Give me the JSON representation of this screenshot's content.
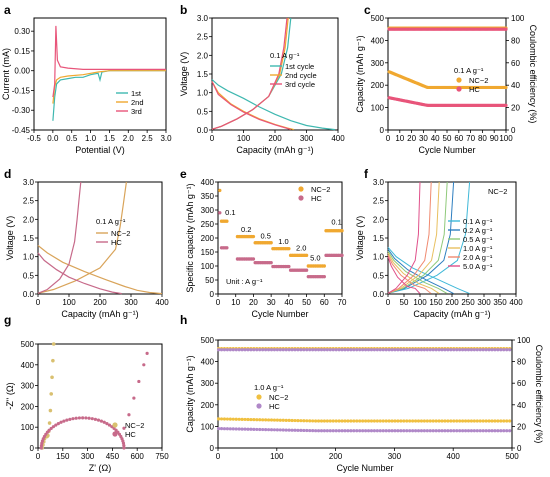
{
  "chart_data": [
    {
      "panel": "a",
      "type": "line",
      "xlabel": "Potential (V)",
      "ylabel": "Current (mA)",
      "xlim": [
        -0.5,
        3.0
      ],
      "ylim": [
        -0.45,
        0.4
      ],
      "xticks": [
        "-0.5",
        "0.0",
        "0.5",
        "1.0",
        "1.5",
        "2.0",
        "2.5",
        "3.0"
      ],
      "yticks": [
        "-0.45",
        "-0.30",
        "-0.15",
        "0.00",
        "0.15",
        "0.30"
      ],
      "legend_position": "bottom-right",
      "series": [
        {
          "name": "1st",
          "color": "#3fb8b0",
          "x": [
            0.0,
            0.05,
            0.1,
            0.2,
            0.4,
            0.6,
            0.8,
            1.0,
            1.2,
            1.25,
            1.3,
            1.5,
            2.0,
            2.5,
            3.0
          ],
          "y": [
            -0.38,
            -0.2,
            -0.1,
            -0.07,
            -0.06,
            -0.05,
            -0.05,
            -0.03,
            -0.02,
            -0.07,
            -0.01,
            0.0,
            0.0,
            0.0,
            0.0
          ]
        },
        {
          "name": "2nd",
          "color": "#f0a830",
          "x": [
            0.0,
            0.05,
            0.1,
            0.2,
            0.4,
            0.8,
            1.2,
            1.5,
            2.0,
            2.5,
            3.0
          ],
          "y": [
            -0.25,
            -0.12,
            -0.07,
            -0.05,
            -0.04,
            -0.03,
            -0.01,
            0.0,
            0.0,
            0.0,
            0.0
          ]
        },
        {
          "name": "3rd",
          "color": "#e8557a",
          "x": [
            0.0,
            0.05,
            0.08,
            0.12,
            0.2,
            0.4,
            0.8,
            1.5,
            2.0,
            2.5,
            3.0
          ],
          "y": [
            -0.2,
            -0.1,
            0.34,
            0.08,
            0.03,
            0.02,
            0.01,
            0.01,
            0.01,
            0.01,
            0.01
          ]
        }
      ],
      "legend": [
        "1st",
        "2nd",
        "3rd"
      ]
    },
    {
      "panel": "b",
      "type": "line",
      "xlabel": "Capacity (mAh g⁻¹)",
      "ylabel": "Voltage (V)",
      "xlim": [
        0,
        400
      ],
      "ylim": [
        0,
        3.0
      ],
      "xticks": [
        "0",
        "100",
        "200",
        "300",
        "400"
      ],
      "yticks": [
        "0.0",
        "0.5",
        "1.0",
        "1.5",
        "2.0",
        "2.5",
        "3.0"
      ],
      "annotation": "0.1 A g⁻¹",
      "legend": [
        "1st cycle",
        "2nd cycle",
        "3rd cycle"
      ],
      "series": [
        {
          "name": "1st cycle",
          "color": "#3fb8b0",
          "discharge": {
            "x": [
              0,
              20,
              50,
              100,
              150,
              200,
              250,
              300,
              350,
              390
            ],
            "y": [
              1.35,
              1.2,
              1.05,
              0.85,
              0.62,
              0.42,
              0.25,
              0.12,
              0.05,
              0.01
            ]
          },
          "charge": {
            "x": [
              0,
              30,
              80,
              130,
              180,
              220,
              240,
              250
            ],
            "y": [
              0.02,
              0.1,
              0.3,
              0.55,
              0.9,
              1.5,
              2.2,
              3.0
            ]
          }
        },
        {
          "name": "2nd cycle",
          "color": "#f0a830",
          "discharge": {
            "x": [
              0,
              20,
              60,
              100,
              150,
              200,
              240,
              260
            ],
            "y": [
              1.3,
              1.0,
              0.7,
              0.5,
              0.3,
              0.15,
              0.05,
              0.01
            ]
          },
          "charge": {
            "x": [
              0,
              30,
              80,
              130,
              180,
              215,
              232,
              242
            ],
            "y": [
              0.02,
              0.1,
              0.3,
              0.55,
              0.9,
              1.5,
              2.2,
              3.0
            ]
          }
        },
        {
          "name": "3rd cycle",
          "color": "#e8557a",
          "discharge": {
            "x": [
              0,
              20,
              60,
              100,
              150,
              200,
              235,
              250
            ],
            "y": [
              1.3,
              0.95,
              0.68,
              0.48,
              0.28,
              0.14,
              0.05,
              0.01
            ]
          },
          "charge": {
            "x": [
              0,
              30,
              80,
              130,
              180,
              212,
              228,
              238
            ],
            "y": [
              0.02,
              0.1,
              0.3,
              0.55,
              0.9,
              1.5,
              2.2,
              3.0
            ]
          }
        }
      ]
    },
    {
      "panel": "c",
      "type": "scatter",
      "xlabel": "Cycle Number",
      "ylabel": "Capacity (mAh g⁻¹)",
      "ylabel2": "Coulombic efficiency (%)",
      "xlim": [
        0,
        100
      ],
      "ylim": [
        0,
        500
      ],
      "y2lim": [
        0,
        100
      ],
      "xticks": [
        "0",
        "10",
        "20",
        "30",
        "40",
        "50",
        "60",
        "70",
        "80",
        "90",
        "100"
      ],
      "yticks": [
        "0",
        "100",
        "200",
        "300",
        "400",
        "500"
      ],
      "y2ticks": [
        "0",
        "20",
        "40",
        "60",
        "80",
        "100"
      ],
      "annotation": "0.1 A g⁻¹",
      "legend": [
        "NC−2",
        "HC"
      ],
      "series": [
        {
          "name": "NC−2",
          "color": "#f0a830",
          "capacity_start": 262,
          "capacity_end": 190,
          "ce": 91
        },
        {
          "name": "HC",
          "color": "#e8557a",
          "capacity_start": 145,
          "capacity_end": 110,
          "ce": 90
        }
      ]
    },
    {
      "panel": "d",
      "type": "line",
      "xlabel": "Capacity (mAh g⁻¹)",
      "ylabel": "Voltage (V)",
      "xlim": [
        0,
        400
      ],
      "ylim": [
        0,
        3.0
      ],
      "xticks": [
        "0",
        "100",
        "200",
        "300",
        "400"
      ],
      "yticks": [
        "0.0",
        "0.5",
        "1.0",
        "1.5",
        "2.0",
        "2.5",
        "3.0"
      ],
      "annotation": "0.1 A g⁻¹",
      "legend": [
        "NC−2",
        "HC"
      ],
      "series": [
        {
          "name": "NC−2",
          "color": "#d9a45a",
          "discharge": {
            "x": [
              0,
              30,
              80,
              150,
              220,
              280,
              320,
              360,
              400
            ],
            "y": [
              1.3,
              1.1,
              0.85,
              0.6,
              0.38,
              0.2,
              0.1,
              0.04,
              0.01
            ]
          },
          "charge": {
            "x": [
              0,
              50,
              120,
              200,
              250,
              265,
              275,
              285
            ],
            "y": [
              0.02,
              0.12,
              0.35,
              0.7,
              1.2,
              1.8,
              2.4,
              3.0
            ]
          }
        },
        {
          "name": "HC",
          "color": "#c76a8a",
          "discharge": {
            "x": [
              0,
              20,
              60,
              100,
              150,
              200,
              240,
              270
            ],
            "y": [
              1.1,
              0.9,
              0.65,
              0.45,
              0.28,
              0.14,
              0.05,
              0.01
            ]
          },
          "charge": {
            "x": [
              0,
              30,
              70,
              100,
              118,
              126,
              132,
              138
            ],
            "y": [
              0.02,
              0.12,
              0.4,
              0.8,
              1.4,
              2.0,
              2.5,
              3.0
            ]
          }
        }
      ]
    },
    {
      "panel": "e",
      "type": "scatter",
      "xlabel": "Cycle Number",
      "ylabel": "Specific capacity (mAh g⁻¹)",
      "xlim": [
        0,
        70
      ],
      "ylim": [
        0,
        400
      ],
      "xticks": [
        "0",
        "10",
        "20",
        "30",
        "40",
        "50",
        "60",
        "70"
      ],
      "yticks": [
        "0",
        "50",
        "100",
        "150",
        "200",
        "250",
        "300",
        "350",
        "400"
      ],
      "rate_labels": [
        "0.1",
        "0.2",
        "0.5",
        "1.0",
        "2.0",
        "5.0",
        "0.1"
      ],
      "unit_note": "Unit : A g⁻¹",
      "legend": [
        "NC−2",
        "HC"
      ],
      "series": [
        {
          "name": "NC−2",
          "color": "#f0a830",
          "segments": [
            [
              1,
              5,
              260
            ],
            [
              11,
              20,
              205
            ],
            [
              21,
              30,
              183
            ],
            [
              31,
              40,
              162
            ],
            [
              41,
              50,
              138
            ],
            [
              51,
              60,
              100
            ],
            [
              61,
              70,
              226
            ]
          ]
        },
        {
          "name": "HC",
          "color": "#c76a8a",
          "segments": [
            [
              1,
              5,
              165
            ],
            [
              11,
              20,
              125
            ],
            [
              21,
              30,
              112
            ],
            [
              31,
              40,
              98
            ],
            [
              41,
              50,
              85
            ],
            [
              51,
              60,
              62
            ],
            [
              61,
              70,
              138
            ]
          ]
        }
      ]
    },
    {
      "panel": "f",
      "type": "line",
      "xlabel": "Capacity (mAh g⁻¹)",
      "ylabel": "Voltage (V)",
      "xlim": [
        0,
        400
      ],
      "ylim": [
        0,
        3.0
      ],
      "xticks": [
        "0",
        "50",
        "100",
        "150",
        "200",
        "250",
        "300",
        "350",
        "400"
      ],
      "yticks": [
        "0.0",
        "0.5",
        "1.0",
        "1.5",
        "2.0",
        "2.5",
        "3.0"
      ],
      "title": "NC−2",
      "legend": [
        "0.1 A g⁻¹",
        "0.2 A g⁻¹",
        "0.5 A g⁻¹",
        "1.0 A g⁻¹",
        "2.0 A g⁻¹",
        "5.0 A g⁻¹"
      ],
      "series": [
        {
          "name": "0.1 A g⁻¹",
          "color": "#3fb8d8",
          "cap": 255
        },
        {
          "name": "0.2 A g⁻¹",
          "color": "#2e7fc0",
          "cap": 205
        },
        {
          "name": "0.5 A g⁻¹",
          "color": "#8fc97a",
          "cap": 185
        },
        {
          "name": "1.0 A g⁻¹",
          "color": "#e8c060",
          "cap": 160
        },
        {
          "name": "2.0 A g⁻¹",
          "color": "#f08a70",
          "cap": 135
        },
        {
          "name": "5.0 A g⁻¹",
          "color": "#e0508a",
          "cap": 100
        }
      ]
    },
    {
      "panel": "g",
      "type": "scatter",
      "xlabel": "Z' (Ω)",
      "ylabel": "-Z'' (Ω)",
      "xlim": [
        0,
        750
      ],
      "ylim": [
        0,
        500
      ],
      "xticks": [
        "0",
        "150",
        "300",
        "450",
        "600",
        "750"
      ],
      "yticks": [
        "0",
        "100",
        "200",
        "300",
        "400",
        "500"
      ],
      "legend": [
        "NC−2",
        "HC"
      ],
      "series": [
        {
          "name": "NC−2",
          "color": "#d9c070",
          "x": [
            25,
            30,
            35,
            40,
            45,
            50,
            55,
            60,
            65,
            70,
            75,
            80,
            85,
            90,
            95
          ],
          "y": [
            0,
            15,
            30,
            45,
            55,
            58,
            55,
            60,
            80,
            120,
            180,
            260,
            340,
            420,
            500
          ]
        },
        {
          "name": "HC",
          "color": "#c76a8a",
          "semicircle": {
            "x0": 20,
            "x1": 520,
            "peak": 145
          },
          "tail": {
            "x": [
              520,
              550,
              580,
              610,
              640,
              660
            ],
            "y": [
              95,
              160,
              240,
              320,
              400,
              455
            ]
          }
        }
      ]
    },
    {
      "panel": "h",
      "type": "scatter",
      "xlabel": "Cycle Number",
      "ylabel": "Capacity (mAh g⁻¹)",
      "ylabel2": "Coulombic efficiency (%)",
      "xlim": [
        0,
        500
      ],
      "ylim": [
        0,
        500
      ],
      "y2lim": [
        0,
        100
      ],
      "xticks": [
        "0",
        "100",
        "200",
        "300",
        "400",
        "500"
      ],
      "yticks": [
        "0",
        "100",
        "200",
        "300",
        "400",
        "500"
      ],
      "y2ticks": [
        "0",
        "20",
        "40",
        "60",
        "80",
        "100"
      ],
      "annotation": "1.0 A g⁻¹",
      "legend": [
        "NC−2",
        "HC"
      ],
      "series": [
        {
          "name": "NC−2",
          "color": "#f0c040",
          "capacity_start": 135,
          "capacity_end": 125,
          "ce": 92
        },
        {
          "name": "HC",
          "color": "#b088c8",
          "capacity_start": 90,
          "capacity_end": 80,
          "ce": 91
        }
      ]
    }
  ]
}
